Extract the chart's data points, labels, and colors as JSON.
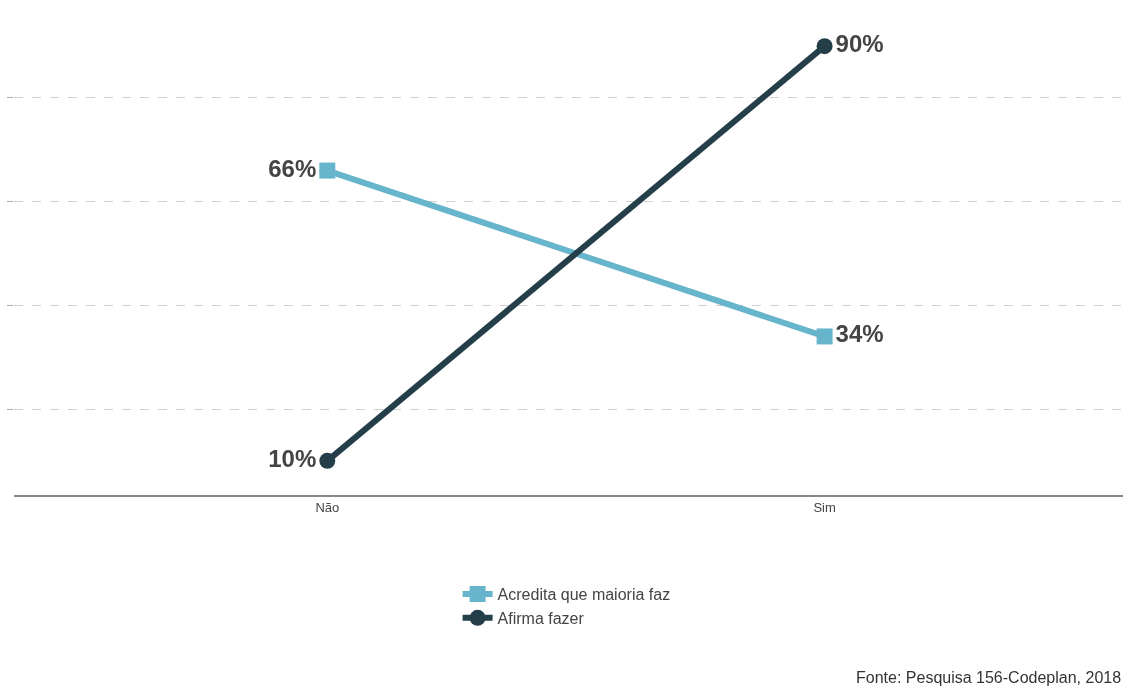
{
  "chart_data": {
    "type": "line",
    "categories": [
      "Não",
      "Sim"
    ],
    "series": [
      {
        "name": "Acredita que maioria faz",
        "color": "#67b5cc",
        "values": [
          66,
          34
        ],
        "value_labels": [
          "66%",
          "34%"
        ],
        "marker": "square"
      },
      {
        "name": "Afirma fazer",
        "color": "#243e4a",
        "values": [
          10,
          90
        ],
        "value_labels": [
          "10%",
          "90%"
        ],
        "marker": "circle"
      }
    ],
    "grid": "y",
    "line_style": "solid",
    "legend": "bottom",
    "tick_labels": "x",
    "annotations": [
      "Fonte: Pesquisa 156-Codeplan, 2018"
    ]
  }
}
